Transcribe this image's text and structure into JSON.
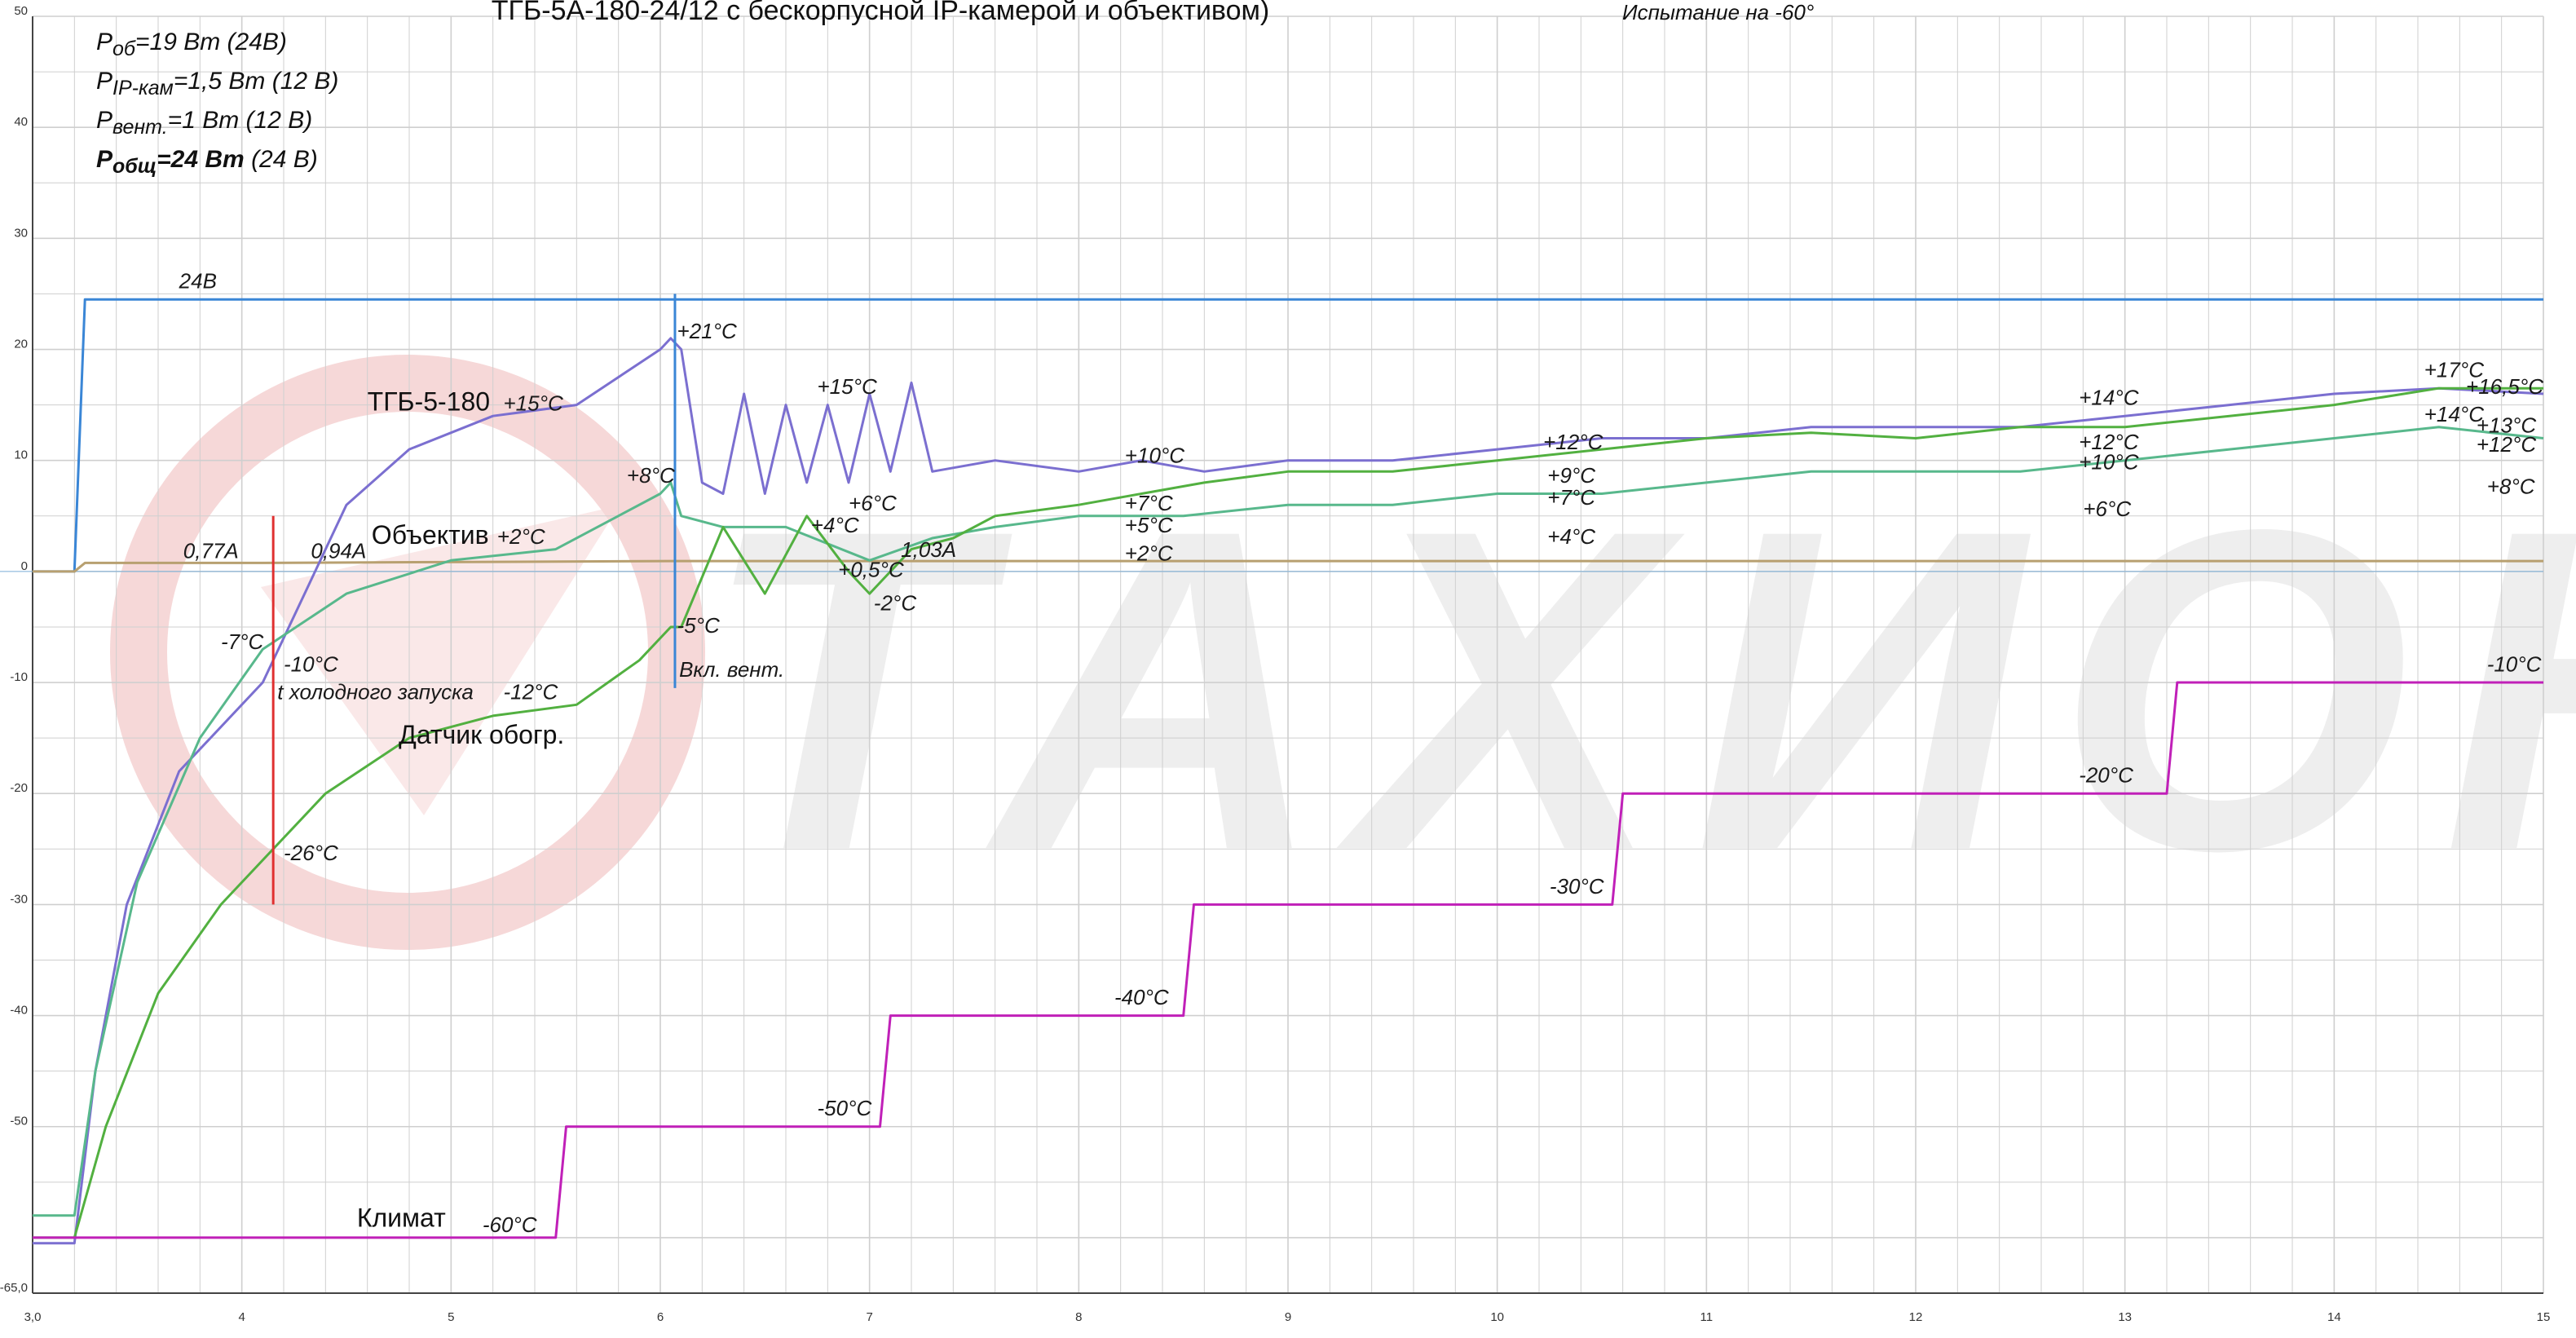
{
  "title": {
    "main": "ТГБ-5А-180-24/12 с бескорпусной IP-камерой и объективом)",
    "sub": "Испытание на -60°"
  },
  "power": {
    "lines": [
      {
        "sym": "P",
        "sub": "об",
        "val": "=19 Вт",
        "unit": " (24В)",
        "bold": false
      },
      {
        "sym": "P",
        "sub": "IP-кам",
        "val": "=1,5 Вт",
        "unit": " (12 В)",
        "bold": false
      },
      {
        "sym": "P",
        "sub": "вент.",
        "val": "=1 Вт",
        "unit": " (12 В)",
        "bold": false
      },
      {
        "sym": "P",
        "sub": "общ",
        "val": "=24 Вт",
        "unit": " (24 В)",
        "bold": true
      }
    ]
  },
  "watermark": {
    "text": "ТАХИОН",
    "color": "#eeeeee",
    "logo_color": "#f6d8d8"
  },
  "colors": {
    "grid": "#cfcfcf",
    "voltage": "#3a86d6",
    "current": "#b8a070",
    "tgb": "#7b6fd0",
    "lens": "#58b88c",
    "sensor": "#52b040",
    "klimat": "#c020b8",
    "marker_red": "#e03030",
    "marker_blue": "#3a86d6"
  },
  "chart_data": {
    "type": "line",
    "xlabel": "",
    "ylabel": "",
    "xlim": [
      3.0,
      15.0
    ],
    "ylim": [
      -65,
      50
    ],
    "x_ticks": [
      "3,0",
      "4",
      "5",
      "6",
      "7",
      "8",
      "9",
      "10",
      "11",
      "12",
      "13",
      "14",
      "15"
    ],
    "y_ticks": [
      "50",
      "40",
      "30",
      "20",
      "10",
      "0",
      "-10",
      "-20",
      "-30",
      "-40",
      "-50",
      "-65,0"
    ],
    "grid": true,
    "series": [
      {
        "name": "24В",
        "color": "#3a86d6",
        "points": [
          [
            3.0,
            0
          ],
          [
            3.2,
            0
          ],
          [
            3.25,
            24.5
          ],
          [
            6.05,
            24.5
          ],
          [
            15.0,
            24.5
          ]
        ]
      },
      {
        "name": "",
        "color": "#b8a070",
        "points": [
          [
            3.0,
            0
          ],
          [
            3.2,
            0
          ],
          [
            3.25,
            0.77
          ],
          [
            4.1,
            0.77
          ],
          [
            6.05,
            0.94
          ],
          [
            15.0,
            0.94
          ]
        ]
      },
      {
        "name": "ТГБ-5-180",
        "color": "#7b6fd0",
        "points": [
          [
            3.0,
            -60.5
          ],
          [
            3.2,
            -60.5
          ],
          [
            3.3,
            -45
          ],
          [
            3.45,
            -30
          ],
          [
            3.7,
            -18
          ],
          [
            4.1,
            -10
          ],
          [
            4.3,
            -2
          ],
          [
            4.5,
            6
          ],
          [
            4.8,
            11
          ],
          [
            5.2,
            14
          ],
          [
            5.6,
            15
          ],
          [
            6.0,
            20
          ],
          [
            6.05,
            21
          ],
          [
            6.1,
            20
          ],
          [
            6.2,
            8
          ],
          [
            6.3,
            7
          ],
          [
            6.4,
            16
          ],
          [
            6.5,
            7
          ],
          [
            6.6,
            15
          ],
          [
            6.7,
            8
          ],
          [
            6.8,
            15
          ],
          [
            6.9,
            8
          ],
          [
            7.0,
            16
          ],
          [
            7.1,
            9
          ],
          [
            7.2,
            17
          ],
          [
            7.3,
            9
          ],
          [
            7.6,
            10
          ],
          [
            8.0,
            9
          ],
          [
            8.3,
            10
          ],
          [
            8.6,
            9
          ],
          [
            9.0,
            10
          ],
          [
            9.5,
            10
          ],
          [
            10.0,
            11
          ],
          [
            10.5,
            12
          ],
          [
            11.0,
            12
          ],
          [
            11.5,
            13
          ],
          [
            12.0,
            13
          ],
          [
            12.5,
            13
          ],
          [
            13.0,
            14
          ],
          [
            13.5,
            15
          ],
          [
            14.0,
            16
          ],
          [
            14.5,
            16.5
          ],
          [
            15.0,
            16
          ]
        ]
      },
      {
        "name": "Объектив",
        "color": "#58b88c",
        "points": [
          [
            3.0,
            -58
          ],
          [
            3.2,
            -58
          ],
          [
            3.3,
            -45
          ],
          [
            3.5,
            -28
          ],
          [
            3.8,
            -15
          ],
          [
            4.1,
            -7
          ],
          [
            4.5,
            -2
          ],
          [
            5.0,
            1
          ],
          [
            5.5,
            2
          ],
          [
            6.0,
            7
          ],
          [
            6.05,
            8
          ],
          [
            6.1,
            5
          ],
          [
            6.3,
            4
          ],
          [
            6.6,
            4
          ],
          [
            7.0,
            1
          ],
          [
            7.3,
            3
          ],
          [
            7.6,
            4
          ],
          [
            8.0,
            5
          ],
          [
            8.5,
            5
          ],
          [
            9.0,
            6
          ],
          [
            9.5,
            6
          ],
          [
            10.0,
            7
          ],
          [
            10.5,
            7
          ],
          [
            11.0,
            8
          ],
          [
            11.5,
            9
          ],
          [
            12.0,
            9
          ],
          [
            12.5,
            9
          ],
          [
            13.0,
            10
          ],
          [
            13.5,
            11
          ],
          [
            14.0,
            12
          ],
          [
            14.5,
            13
          ],
          [
            15.0,
            12
          ]
        ]
      },
      {
        "name": "Датчик обогр.",
        "color": "#52b040",
        "points": [
          [
            3.0,
            -60
          ],
          [
            3.2,
            -60
          ],
          [
            3.35,
            -50
          ],
          [
            3.6,
            -38
          ],
          [
            3.9,
            -30
          ],
          [
            4.1,
            -26
          ],
          [
            4.4,
            -20
          ],
          [
            4.8,
            -15
          ],
          [
            5.2,
            -13
          ],
          [
            5.6,
            -12
          ],
          [
            5.9,
            -8
          ],
          [
            6.05,
            -5
          ],
          [
            6.1,
            -5
          ],
          [
            6.3,
            4
          ],
          [
            6.5,
            -2
          ],
          [
            6.7,
            5
          ],
          [
            6.9,
            0
          ],
          [
            7.0,
            -2
          ],
          [
            7.2,
            2
          ],
          [
            7.4,
            3
          ],
          [
            7.6,
            5
          ],
          [
            8.0,
            6
          ],
          [
            8.3,
            7
          ],
          [
            8.6,
            8
          ],
          [
            9.0,
            9
          ],
          [
            9.5,
            9
          ],
          [
            10.0,
            10
          ],
          [
            10.5,
            11
          ],
          [
            11.0,
            12
          ],
          [
            11.5,
            12.5
          ],
          [
            12.0,
            12
          ],
          [
            12.5,
            13
          ],
          [
            13.0,
            13
          ],
          [
            13.5,
            14
          ],
          [
            14.0,
            15
          ],
          [
            14.5,
            16.5
          ],
          [
            15.0,
            16.5
          ]
        ]
      },
      {
        "name": "Климат",
        "color": "#c020b8",
        "points": [
          [
            3.0,
            -60
          ],
          [
            5.5,
            -60
          ],
          [
            5.55,
            -50
          ],
          [
            7.05,
            -50
          ],
          [
            7.1,
            -40
          ],
          [
            8.5,
            -40
          ],
          [
            8.55,
            -30
          ],
          [
            10.55,
            -30
          ],
          [
            10.6,
            -20
          ],
          [
            13.2,
            -20
          ],
          [
            13.25,
            -10
          ],
          [
            15.0,
            -10
          ]
        ]
      }
    ],
    "annotations": [
      {
        "text": "24В",
        "x": 3.7,
        "y": 25.5
      },
      {
        "text": "0,77A",
        "x": 3.72,
        "y": 1.2
      },
      {
        "text": "0,94A",
        "x": 4.33,
        "y": 1.2
      },
      {
        "text": "1,03A",
        "x": 7.15,
        "y": 1.3
      },
      {
        "text": "ТГБ-5-180",
        "x": 4.6,
        "y": 14.5,
        "big": true
      },
      {
        "text": "+15°C",
        "x": 5.25,
        "y": 14.5
      },
      {
        "text": "Объектив",
        "x": 4.62,
        "y": 2.5,
        "big": true
      },
      {
        "text": "+2°C",
        "x": 5.22,
        "y": 2.5
      },
      {
        "text": "Датчик обогр.",
        "x": 4.75,
        "y": -15.5,
        "big": true
      },
      {
        "text": "-12°C",
        "x": 5.25,
        "y": -11.5
      },
      {
        "text": "Климат",
        "x": 4.55,
        "y": -59.0,
        "big": true
      },
      {
        "text": "-60°C",
        "x": 5.15,
        "y": -59.5
      },
      {
        "text": "-7°C",
        "x": 3.9,
        "y": -7.0
      },
      {
        "text": "-10°C",
        "x": 4.2,
        "y": -9.0
      },
      {
        "text": "t холодного запуска",
        "x": 4.17,
        "y": -11.5
      },
      {
        "text": "-26°C",
        "x": 4.2,
        "y": -26.0
      },
      {
        "text": "+8°C",
        "x": 5.84,
        "y": 8.0
      },
      {
        "text": "+21°C",
        "x": 6.08,
        "y": 21.0
      },
      {
        "text": "-5°C",
        "x": 6.08,
        "y": -5.5
      },
      {
        "text": "Вкл. вент.",
        "x": 6.09,
        "y": -9.5
      },
      {
        "text": "+15°C",
        "x": 6.75,
        "y": 16.0
      },
      {
        "text": "+4°C",
        "x": 6.72,
        "y": 3.5
      },
      {
        "text": "+6°C",
        "x": 6.9,
        "y": 5.5
      },
      {
        "text": "+0,5°C",
        "x": 6.85,
        "y": -0.5
      },
      {
        "text": "-2°C",
        "x": 7.02,
        "y": -3.5
      },
      {
        "text": "+10°C",
        "x": 8.22,
        "y": 9.8
      },
      {
        "text": "+7°C",
        "x": 8.22,
        "y": 5.5
      },
      {
        "text": "+5°C",
        "x": 8.22,
        "y": 3.5
      },
      {
        "text": "+2°C",
        "x": 8.22,
        "y": 1.0
      },
      {
        "text": "+12°C",
        "x": 10.22,
        "y": 11.0
      },
      {
        "text": "+9°C",
        "x": 10.24,
        "y": 8.0
      },
      {
        "text": "+7°C",
        "x": 10.24,
        "y": 6.0
      },
      {
        "text": "+4°C",
        "x": 10.24,
        "y": 2.5
      },
      {
        "text": "+14°C",
        "x": 12.78,
        "y": 15.0
      },
      {
        "text": "+12°C",
        "x": 12.78,
        "y": 11.0
      },
      {
        "text": "+10°C",
        "x": 12.78,
        "y": 9.2
      },
      {
        "text": "+6°C",
        "x": 12.8,
        "y": 5.0
      },
      {
        "text": "+17°C",
        "x": 14.43,
        "y": 17.5
      },
      {
        "text": "+16,5°C",
        "x": 14.63,
        "y": 16.0
      },
      {
        "text": "+14°C",
        "x": 14.43,
        "y": 13.5
      },
      {
        "text": "+13°C",
        "x": 14.68,
        "y": 12.5
      },
      {
        "text": "+12°C",
        "x": 14.68,
        "y": 10.8
      },
      {
        "text": "+8°C",
        "x": 14.73,
        "y": 7.0
      },
      {
        "text": "-50°C",
        "x": 6.75,
        "y": -49.0
      },
      {
        "text": "-40°C",
        "x": 8.17,
        "y": -39.0
      },
      {
        "text": "-30°C",
        "x": 10.25,
        "y": -29.0
      },
      {
        "text": "-20°C",
        "x": 12.78,
        "y": -19.0
      },
      {
        "text": "-10°C",
        "x": 14.73,
        "y": -9.0
      }
    ]
  }
}
